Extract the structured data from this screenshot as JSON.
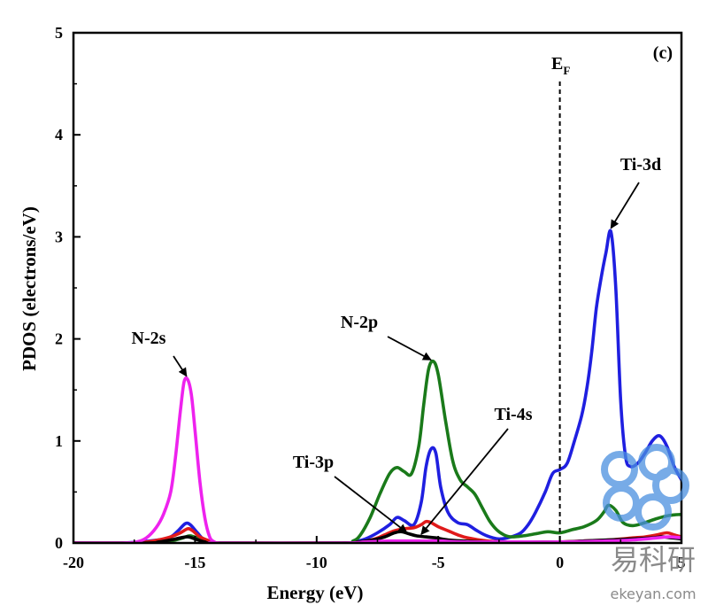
{
  "chart_data": {
    "type": "line",
    "panel_label": "(c)",
    "xlabel": "Energy (eV)",
    "ylabel": "PDOS (electrons/eV)",
    "xlim": [
      -20,
      5
    ],
    "ylim": [
      0,
      5
    ],
    "x_ticks": [
      "-20",
      "-15",
      "-10",
      "-5",
      "0",
      "5"
    ],
    "y_ticks": [
      "0",
      "1",
      "2",
      "3",
      "4",
      "5"
    ],
    "fermi_level": {
      "x": 0,
      "label_main": "E",
      "label_sub": "F"
    },
    "series": [
      {
        "name": "Ti-3d",
        "color": "#1f1fe0",
        "points": [
          [
            -20,
            0
          ],
          [
            -18,
            0
          ],
          [
            -16.5,
            0.03
          ],
          [
            -16,
            0.06
          ],
          [
            -15.7,
            0.12
          ],
          [
            -15.4,
            0.19
          ],
          [
            -15.2,
            0.18
          ],
          [
            -14.9,
            0.1
          ],
          [
            -14.6,
            0.03
          ],
          [
            -14,
            0
          ],
          [
            -9,
            0
          ],
          [
            -8.5,
            0.01
          ],
          [
            -8,
            0.04
          ],
          [
            -7.5,
            0.1
          ],
          [
            -7,
            0.18
          ],
          [
            -6.7,
            0.25
          ],
          [
            -6.4,
            0.22
          ],
          [
            -6.0,
            0.18
          ],
          [
            -5.7,
            0.4
          ],
          [
            -5.5,
            0.75
          ],
          [
            -5.3,
            0.92
          ],
          [
            -5.1,
            0.88
          ],
          [
            -4.9,
            0.55
          ],
          [
            -4.6,
            0.3
          ],
          [
            -4.2,
            0.2
          ],
          [
            -3.8,
            0.18
          ],
          [
            -3.4,
            0.12
          ],
          [
            -3.0,
            0.07
          ],
          [
            -2.5,
            0.04
          ],
          [
            -2.0,
            0.06
          ],
          [
            -1.6,
            0.1
          ],
          [
            -1.3,
            0.18
          ],
          [
            -1.0,
            0.3
          ],
          [
            -0.6,
            0.5
          ],
          [
            -0.3,
            0.68
          ],
          [
            0,
            0.72
          ],
          [
            0.3,
            0.78
          ],
          [
            0.6,
            1.0
          ],
          [
            0.9,
            1.25
          ],
          [
            1.1,
            1.5
          ],
          [
            1.3,
            1.85
          ],
          [
            1.5,
            2.3
          ],
          [
            1.7,
            2.6
          ],
          [
            1.9,
            2.85
          ],
          [
            2.1,
            3.05
          ],
          [
            2.3,
            2.5
          ],
          [
            2.5,
            1.4
          ],
          [
            2.7,
            0.85
          ],
          [
            2.9,
            0.75
          ],
          [
            3.2,
            0.78
          ],
          [
            3.5,
            0.88
          ],
          [
            3.8,
            1.0
          ],
          [
            4.1,
            1.05
          ],
          [
            4.4,
            0.95
          ],
          [
            4.7,
            0.75
          ],
          [
            5.0,
            0.62
          ]
        ]
      },
      {
        "name": "N-2p",
        "color": "#1a7a1a",
        "points": [
          [
            -20,
            0
          ],
          [
            -17,
            0
          ],
          [
            -16,
            0.02
          ],
          [
            -15.5,
            0.05
          ],
          [
            -15.2,
            0.07
          ],
          [
            -14.8,
            0.04
          ],
          [
            -14.3,
            0.01
          ],
          [
            -14,
            0
          ],
          [
            -9,
            0
          ],
          [
            -8.5,
            0.02
          ],
          [
            -8.2,
            0.08
          ],
          [
            -7.8,
            0.25
          ],
          [
            -7.4,
            0.48
          ],
          [
            -7.0,
            0.68
          ],
          [
            -6.7,
            0.74
          ],
          [
            -6.4,
            0.7
          ],
          [
            -6.1,
            0.68
          ],
          [
            -5.8,
            0.95
          ],
          [
            -5.6,
            1.35
          ],
          [
            -5.4,
            1.7
          ],
          [
            -5.2,
            1.78
          ],
          [
            -5.0,
            1.65
          ],
          [
            -4.7,
            1.2
          ],
          [
            -4.4,
            0.8
          ],
          [
            -4.1,
            0.62
          ],
          [
            -3.8,
            0.55
          ],
          [
            -3.5,
            0.48
          ],
          [
            -3.2,
            0.35
          ],
          [
            -2.9,
            0.22
          ],
          [
            -2.6,
            0.13
          ],
          [
            -2.3,
            0.08
          ],
          [
            -2.0,
            0.06
          ],
          [
            -1.5,
            0.07
          ],
          [
            -1.0,
            0.09
          ],
          [
            -0.5,
            0.11
          ],
          [
            0,
            0.1
          ],
          [
            0.5,
            0.13
          ],
          [
            1.0,
            0.16
          ],
          [
            1.5,
            0.22
          ],
          [
            1.8,
            0.3
          ],
          [
            2.0,
            0.37
          ],
          [
            2.3,
            0.32
          ],
          [
            2.6,
            0.2
          ],
          [
            3.0,
            0.17
          ],
          [
            3.5,
            0.2
          ],
          [
            4.0,
            0.24
          ],
          [
            4.5,
            0.27
          ],
          [
            5.0,
            0.28
          ]
        ]
      },
      {
        "name": "Ti-4s",
        "color": "#e01a1a",
        "points": [
          [
            -20,
            0
          ],
          [
            -17.5,
            0
          ],
          [
            -17,
            0.01
          ],
          [
            -16.5,
            0.03
          ],
          [
            -16,
            0.06
          ],
          [
            -15.6,
            0.1
          ],
          [
            -15.3,
            0.14
          ],
          [
            -15.1,
            0.12
          ],
          [
            -14.8,
            0.06
          ],
          [
            -14.4,
            0.02
          ],
          [
            -14,
            0
          ],
          [
            -9,
            0
          ],
          [
            -8.2,
            0.01
          ],
          [
            -7.6,
            0.04
          ],
          [
            -7.2,
            0.08
          ],
          [
            -6.8,
            0.12
          ],
          [
            -6.4,
            0.14
          ],
          [
            -6.0,
            0.15
          ],
          [
            -5.7,
            0.18
          ],
          [
            -5.5,
            0.21
          ],
          [
            -5.3,
            0.2
          ],
          [
            -5.0,
            0.16
          ],
          [
            -4.6,
            0.12
          ],
          [
            -4.2,
            0.08
          ],
          [
            -3.8,
            0.05
          ],
          [
            -3.0,
            0.02
          ],
          [
            -2.0,
            0.01
          ],
          [
            -1.0,
            0.01
          ],
          [
            0,
            0.01
          ],
          [
            1.0,
            0.02
          ],
          [
            2.0,
            0.03
          ],
          [
            3.0,
            0.05
          ],
          [
            3.5,
            0.06
          ],
          [
            4.0,
            0.08
          ],
          [
            4.4,
            0.1
          ],
          [
            4.7,
            0.08
          ],
          [
            5.0,
            0.06
          ]
        ]
      },
      {
        "name": "Ti-3p",
        "color": "#000000",
        "points": [
          [
            -20,
            0
          ],
          [
            -17,
            0
          ],
          [
            -16.5,
            0.01
          ],
          [
            -16,
            0.03
          ],
          [
            -15.6,
            0.05
          ],
          [
            -15.3,
            0.06
          ],
          [
            -15,
            0.04
          ],
          [
            -14.6,
            0.01
          ],
          [
            -14,
            0
          ],
          [
            -9,
            0
          ],
          [
            -8.3,
            0.01
          ],
          [
            -7.7,
            0.03
          ],
          [
            -7.2,
            0.06
          ],
          [
            -6.8,
            0.1
          ],
          [
            -6.5,
            0.11
          ],
          [
            -6.2,
            0.09
          ],
          [
            -5.9,
            0.07
          ],
          [
            -5.5,
            0.06
          ],
          [
            -5.1,
            0.05
          ],
          [
            -4.6,
            0.03
          ],
          [
            -4.0,
            0.02
          ],
          [
            -3.0,
            0.01
          ],
          [
            -2.0,
            0.01
          ],
          [
            0,
            0.01
          ],
          [
            1.0,
            0.02
          ],
          [
            2.0,
            0.03
          ],
          [
            3.0,
            0.04
          ],
          [
            3.8,
            0.05
          ],
          [
            4.2,
            0.06
          ],
          [
            4.6,
            0.05
          ],
          [
            5.0,
            0.04
          ]
        ]
      },
      {
        "name": "N-2s",
        "color": "#ee22ee",
        "points": [
          [
            -20,
            0
          ],
          [
            -18,
            0
          ],
          [
            -17.4,
            0.01
          ],
          [
            -17,
            0.05
          ],
          [
            -16.6,
            0.15
          ],
          [
            -16.3,
            0.28
          ],
          [
            -16.0,
            0.5
          ],
          [
            -15.8,
            0.85
          ],
          [
            -15.6,
            1.3
          ],
          [
            -15.45,
            1.58
          ],
          [
            -15.3,
            1.6
          ],
          [
            -15.15,
            1.45
          ],
          [
            -15.0,
            1.1
          ],
          [
            -14.8,
            0.6
          ],
          [
            -14.6,
            0.25
          ],
          [
            -14.4,
            0.06
          ],
          [
            -14.2,
            0.01
          ],
          [
            -14,
            0
          ],
          [
            -9,
            0
          ],
          [
            -8,
            0.01
          ],
          [
            -7,
            0.02
          ],
          [
            -6,
            0.02
          ],
          [
            -5,
            0.02
          ],
          [
            -4,
            0.01
          ],
          [
            -2,
            0.01
          ],
          [
            0,
            0.01
          ],
          [
            2,
            0.02
          ],
          [
            3,
            0.03
          ],
          [
            4,
            0.05
          ],
          [
            4.5,
            0.06
          ],
          [
            5,
            0.05
          ]
        ]
      }
    ],
    "annotations": [
      {
        "label": "N-2s",
        "target": [
          -15.35,
          1.6
        ]
      },
      {
        "label": "N-2p",
        "target": [
          -5.3,
          1.76
        ]
      },
      {
        "label": "Ti-4s",
        "target": [
          -5.7,
          0.05
        ]
      },
      {
        "label": "Ti-3p",
        "target": [
          -6.3,
          0.07
        ]
      },
      {
        "label": "Ti-3d",
        "target": [
          2.1,
          3.05
        ]
      }
    ]
  },
  "watermark": {
    "brand": "易科研",
    "site": "ekeyan.com",
    "color": "#4a8fe0"
  }
}
